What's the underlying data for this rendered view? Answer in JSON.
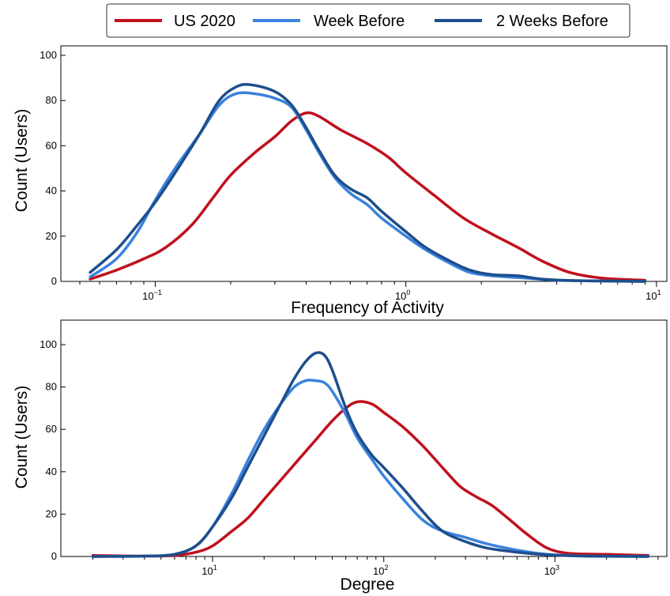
{
  "legend": {
    "placement": "top-center",
    "entries": [
      {
        "label": "US 2020",
        "color": "#c0101c"
      },
      {
        "label": "Week Before",
        "color": "#3a82dc"
      },
      {
        "label": "2 Weeks Before",
        "color": "#1e4e8c"
      }
    ]
  },
  "chart_data": [
    {
      "type": "line",
      "xlabel": "Frequency of Activity",
      "ylabel": "Count (Users)",
      "xscale": "log",
      "xlim": [
        0.042,
        11
      ],
      "ylim": [
        0,
        110
      ],
      "x_ticks": [
        {
          "value": 0.1,
          "base": "10",
          "exp": "−1"
        },
        {
          "value": 1,
          "base": "10",
          "exp": "0"
        },
        {
          "value": 10,
          "base": "10",
          "exp": "1"
        }
      ],
      "y_ticks": [
        0,
        20,
        40,
        60,
        80,
        100
      ],
      "grid": false,
      "series": [
        {
          "name": "US 2020",
          "color": "#c0101c",
          "points": [
            [
              0.055,
              1
            ],
            [
              0.07,
              5
            ],
            [
              0.09,
              10
            ],
            [
              0.11,
              15
            ],
            [
              0.14,
              25
            ],
            [
              0.17,
              37
            ],
            [
              0.2,
              47
            ],
            [
              0.25,
              57
            ],
            [
              0.3,
              64
            ],
            [
              0.35,
              71
            ],
            [
              0.4,
              74.5
            ],
            [
              0.45,
              73
            ],
            [
              0.55,
              67
            ],
            [
              0.7,
              61
            ],
            [
              0.85,
              55
            ],
            [
              1.0,
              48
            ],
            [
              1.3,
              38
            ],
            [
              1.7,
              28
            ],
            [
              2.2,
              21
            ],
            [
              2.8,
              15
            ],
            [
              3.5,
              9
            ],
            [
              4.5,
              4
            ],
            [
              6,
              1.5
            ],
            [
              9,
              0.5
            ]
          ]
        },
        {
          "name": "Week Before",
          "color": "#3a82dc",
          "points": [
            [
              0.055,
              2
            ],
            [
              0.07,
              10
            ],
            [
              0.085,
              22
            ],
            [
              0.1,
              36
            ],
            [
              0.12,
              50
            ],
            [
              0.15,
              65
            ],
            [
              0.18,
              78
            ],
            [
              0.21,
              83
            ],
            [
              0.25,
              83
            ],
            [
              0.3,
              81
            ],
            [
              0.35,
              77
            ],
            [
              0.4,
              67
            ],
            [
              0.45,
              57
            ],
            [
              0.52,
              46
            ],
            [
              0.6,
              39
            ],
            [
              0.7,
              34
            ],
            [
              0.8,
              28
            ],
            [
              1.0,
              20
            ],
            [
              1.2,
              14
            ],
            [
              1.5,
              8
            ],
            [
              1.8,
              4
            ],
            [
              2.2,
              2.5
            ],
            [
              3,
              1.5
            ],
            [
              4,
              0.5
            ],
            [
              6,
              0.2
            ],
            [
              9,
              0
            ]
          ]
        },
        {
          "name": "2 Weeks Before",
          "color": "#1e4e8c",
          "points": [
            [
              0.055,
              4
            ],
            [
              0.07,
              14
            ],
            [
              0.085,
              25
            ],
            [
              0.1,
              35
            ],
            [
              0.12,
              48
            ],
            [
              0.15,
              65
            ],
            [
              0.18,
              80
            ],
            [
              0.21,
              86
            ],
            [
              0.24,
              87
            ],
            [
              0.3,
              84
            ],
            [
              0.35,
              78
            ],
            [
              0.4,
              68
            ],
            [
              0.45,
              58
            ],
            [
              0.52,
              47
            ],
            [
              0.6,
              41
            ],
            [
              0.7,
              37
            ],
            [
              0.8,
              31
            ],
            [
              1.0,
              22
            ],
            [
              1.2,
              15
            ],
            [
              1.5,
              9
            ],
            [
              1.8,
              5
            ],
            [
              2.2,
              3
            ],
            [
              2.8,
              2.5
            ],
            [
              3.5,
              1
            ],
            [
              5,
              0.3
            ],
            [
              9,
              0
            ]
          ]
        }
      ]
    },
    {
      "type": "line",
      "xlabel": "Degree",
      "ylabel": "Count (Users)",
      "xscale": "log",
      "xlim": [
        1.3,
        4500
      ],
      "ylim": [
        0,
        110
      ],
      "x_ticks": [
        {
          "value": 10,
          "base": "10",
          "exp": "1"
        },
        {
          "value": 100,
          "base": "10",
          "exp": "2"
        },
        {
          "value": 1000,
          "base": "10",
          "exp": "3"
        }
      ],
      "y_ticks": [
        0,
        20,
        40,
        60,
        80,
        100
      ],
      "grid": false,
      "series": [
        {
          "name": "US 2020",
          "color": "#c0101c",
          "points": [
            [
              2,
              0.5
            ],
            [
              4,
              0.2
            ],
            [
              6,
              0.5
            ],
            [
              8,
              2
            ],
            [
              10,
              5
            ],
            [
              13,
              12
            ],
            [
              16,
              18
            ],
            [
              20,
              27
            ],
            [
              25,
              36
            ],
            [
              32,
              46
            ],
            [
              40,
              55
            ],
            [
              50,
              64
            ],
            [
              60,
              70
            ],
            [
              70,
              73
            ],
            [
              85,
              72
            ],
            [
              100,
              68
            ],
            [
              130,
              61
            ],
            [
              170,
              52
            ],
            [
              220,
              42
            ],
            [
              280,
              33
            ],
            [
              350,
              28
            ],
            [
              430,
              24
            ],
            [
              550,
              17
            ],
            [
              700,
              10
            ],
            [
              900,
              4
            ],
            [
              1200,
              1.5
            ],
            [
              2000,
              1
            ],
            [
              3500,
              0.5
            ]
          ]
        },
        {
          "name": "Week Before",
          "color": "#3a82dc",
          "points": [
            [
              2,
              0
            ],
            [
              4,
              0.2
            ],
            [
              6,
              1
            ],
            [
              8,
              5
            ],
            [
              10,
              14
            ],
            [
              13,
              30
            ],
            [
              16,
              45
            ],
            [
              20,
              60
            ],
            [
              25,
              72
            ],
            [
              30,
              80
            ],
            [
              35,
              83
            ],
            [
              40,
              83
            ],
            [
              45,
              82
            ],
            [
              50,
              78
            ],
            [
              60,
              67
            ],
            [
              70,
              56
            ],
            [
              85,
              46
            ],
            [
              100,
              38
            ],
            [
              130,
              27
            ],
            [
              170,
              17
            ],
            [
              220,
              12
            ],
            [
              300,
              9
            ],
            [
              400,
              6
            ],
            [
              600,
              3
            ],
            [
              900,
              1
            ],
            [
              1500,
              0.2
            ],
            [
              3500,
              0
            ]
          ]
        },
        {
          "name": "2 Weeks Before",
          "color": "#1e4e8c",
          "points": [
            [
              2,
              0
            ],
            [
              4,
              0.2
            ],
            [
              6,
              1
            ],
            [
              8,
              5
            ],
            [
              10,
              14
            ],
            [
              13,
              28
            ],
            [
              16,
              42
            ],
            [
              20,
              57
            ],
            [
              25,
              72
            ],
            [
              30,
              84
            ],
            [
              35,
              92
            ],
            [
              40,
              96
            ],
            [
              45,
              95
            ],
            [
              50,
              88
            ],
            [
              60,
              70
            ],
            [
              70,
              58
            ],
            [
              85,
              48
            ],
            [
              100,
              42
            ],
            [
              130,
              32
            ],
            [
              170,
              21
            ],
            [
              220,
              12
            ],
            [
              300,
              7
            ],
            [
              400,
              4
            ],
            [
              600,
              2
            ],
            [
              900,
              0.8
            ],
            [
              1500,
              0.2
            ],
            [
              3500,
              0
            ]
          ]
        }
      ]
    }
  ]
}
